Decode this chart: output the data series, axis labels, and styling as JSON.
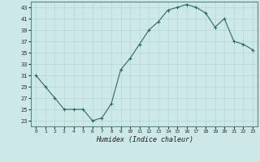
{
  "x": [
    0,
    1,
    2,
    3,
    4,
    5,
    6,
    7,
    8,
    9,
    10,
    11,
    12,
    13,
    14,
    15,
    16,
    17,
    18,
    19,
    20,
    21,
    22,
    23
  ],
  "y": [
    31,
    29,
    27,
    25,
    25,
    25,
    23,
    23.5,
    26,
    32,
    34,
    36.5,
    39,
    40.5,
    42.5,
    43,
    43.5,
    43,
    42,
    39.5,
    41,
    37,
    36.5,
    35.5
  ],
  "line_color": "#2e6b5e",
  "marker_color": "#2e6b5e",
  "bg_color": "#cce8e8",
  "grid_color": "#b8d4d4",
  "xlabel": "Humidex (Indice chaleur)",
  "ylim_min": 22,
  "ylim_max": 44,
  "xlim_min": -0.5,
  "xlim_max": 23.5,
  "yticks": [
    23,
    25,
    27,
    29,
    31,
    33,
    35,
    37,
    39,
    41,
    43
  ],
  "xticks": [
    0,
    1,
    2,
    3,
    4,
    5,
    6,
    7,
    8,
    9,
    10,
    11,
    12,
    13,
    14,
    15,
    16,
    17,
    18,
    19,
    20,
    21,
    22,
    23
  ]
}
